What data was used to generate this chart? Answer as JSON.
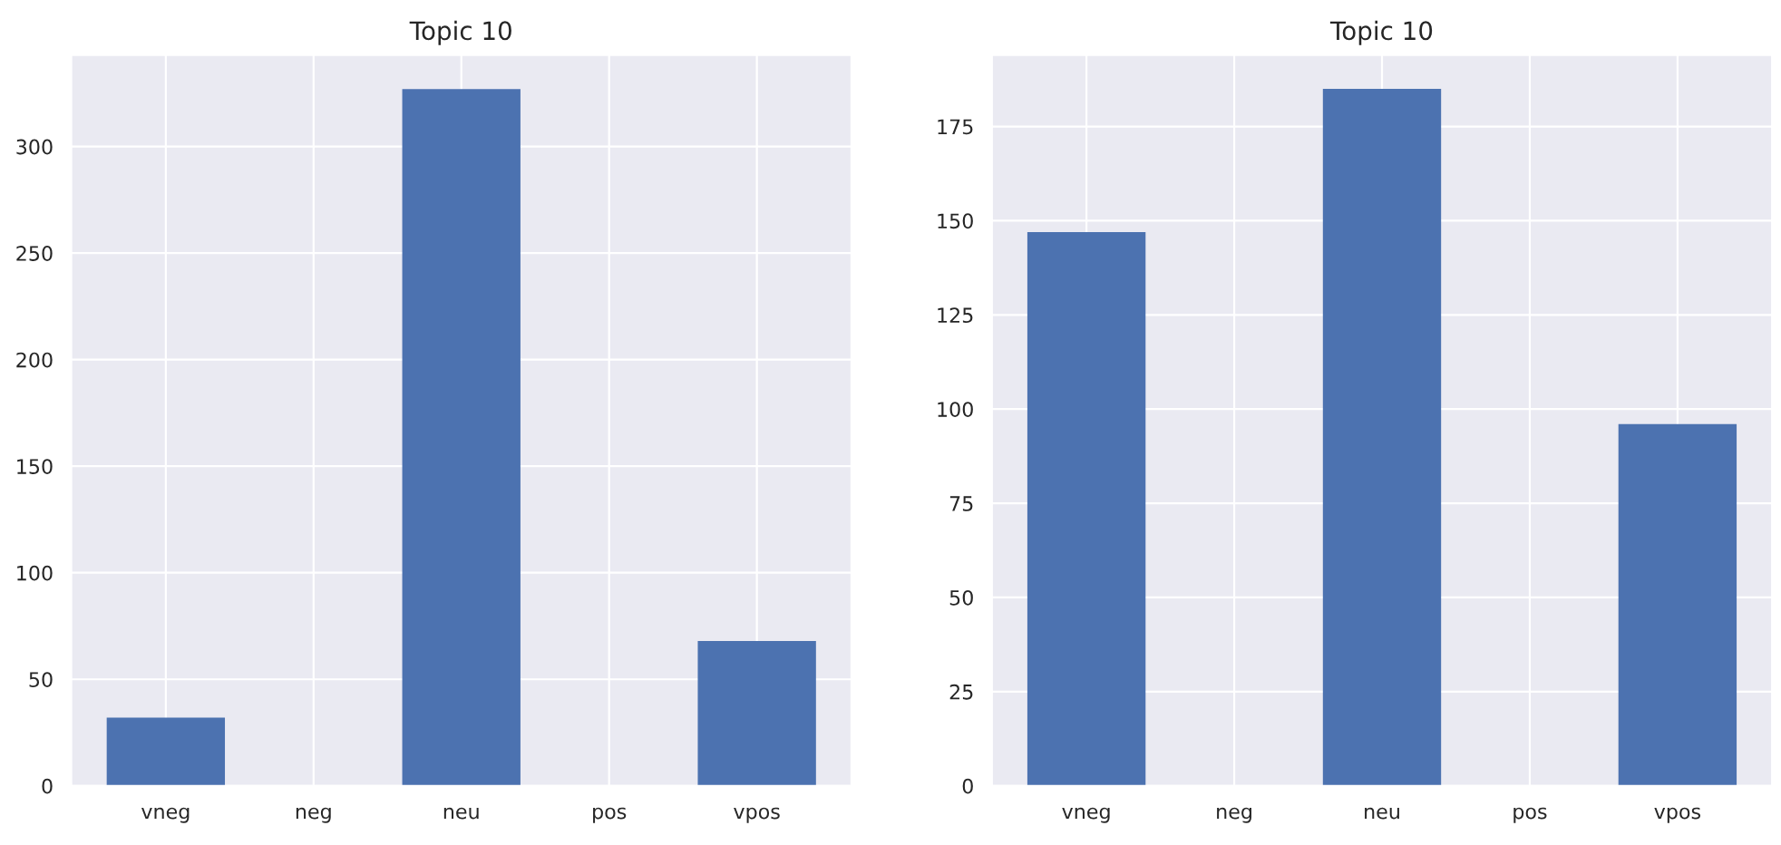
{
  "chart_data": [
    {
      "type": "bar",
      "title": "Topic 10",
      "categories": [
        "vneg",
        "neg",
        "neu",
        "pos",
        "vpos"
      ],
      "values": [
        32,
        0,
        327,
        0,
        68
      ],
      "color": "#4c72b0",
      "ylim": [
        0,
        343
      ],
      "yticks": [
        0,
        50,
        100,
        150,
        200,
        250,
        300
      ],
      "grid": true
    },
    {
      "type": "bar",
      "title": "Topic 10",
      "categories": [
        "vneg",
        "neg",
        "neu",
        "pos",
        "vpos"
      ],
      "values": [
        147,
        0,
        185,
        0,
        96
      ],
      "color": "#4c72b0",
      "ylim": [
        0,
        194
      ],
      "yticks": [
        0,
        25,
        50,
        75,
        100,
        125,
        150,
        175
      ],
      "grid": true
    }
  ]
}
